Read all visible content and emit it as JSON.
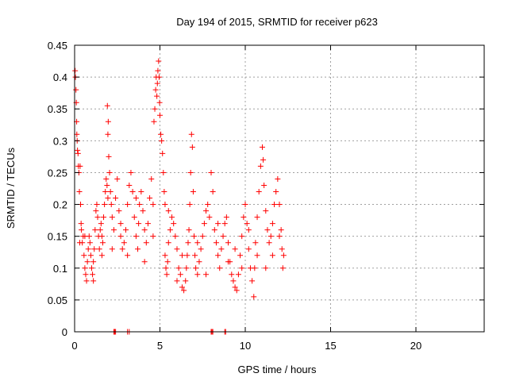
{
  "chart_data": {
    "type": "scatter",
    "title": "Day 194 of 2015, SRMTID for receiver p623",
    "xlabel": "GPS time / hours",
    "ylabel": "SRMTID / TECUs",
    "xlim": [
      0,
      24
    ],
    "ylim": [
      0,
      0.45
    ],
    "x_ticks": [
      0,
      5,
      10,
      15,
      20
    ],
    "x_tick_labels": [
      "0",
      "5",
      "10",
      "15",
      "20"
    ],
    "y_ticks": [
      0,
      0.05,
      0.1,
      0.15,
      0.2,
      0.25,
      0.3,
      0.35,
      0.4,
      0.45
    ],
    "y_tick_labels": [
      "0",
      "0.05",
      "0.1",
      "0.15",
      "0.2",
      "0.25",
      "0.3",
      "0.35",
      "0.4",
      "0.45"
    ],
    "grid": true,
    "marker": "+",
    "series": [
      {
        "name": "SRMTID",
        "color": "#ff0000",
        "points": [
          [
            0.03,
            0.41
          ],
          [
            0.05,
            0.4
          ],
          [
            0.08,
            0.38
          ],
          [
            0.1,
            0.36
          ],
          [
            0.12,
            0.33
          ],
          [
            0.13,
            0.31
          ],
          [
            0.15,
            0.3
          ],
          [
            0.17,
            0.285
          ],
          [
            0.2,
            0.28
          ],
          [
            0.22,
            0.26
          ],
          [
            0.25,
            0.25
          ],
          [
            0.28,
            0.22
          ],
          [
            0.32,
            0.26
          ],
          [
            0.35,
            0.2
          ],
          [
            0.38,
            0.17
          ],
          [
            0.4,
            0.16
          ],
          [
            0.45,
            0.14
          ],
          [
            0.5,
            0.15
          ],
          [
            0.55,
            0.12
          ],
          [
            0.6,
            0.1
          ],
          [
            0.65,
            0.09
          ],
          [
            0.7,
            0.08
          ],
          [
            0.75,
            0.11
          ],
          [
            0.8,
            0.13
          ],
          [
            0.85,
            0.15
          ],
          [
            0.9,
            0.14
          ],
          [
            0.95,
            0.12
          ],
          [
            1.0,
            0.1
          ],
          [
            1.05,
            0.09
          ],
          [
            1.1,
            0.11
          ],
          [
            1.15,
            0.13
          ],
          [
            1.2,
            0.16
          ],
          [
            1.25,
            0.19
          ],
          [
            1.3,
            0.2
          ],
          [
            1.35,
            0.18
          ],
          [
            1.4,
            0.15
          ],
          [
            1.45,
            0.13
          ],
          [
            1.5,
            0.16
          ],
          [
            1.55,
            0.17
          ],
          [
            1.6,
            0.15
          ],
          [
            1.65,
            0.14
          ],
          [
            1.7,
            0.18
          ],
          [
            1.75,
            0.2
          ],
          [
            1.8,
            0.22
          ],
          [
            1.85,
            0.24
          ],
          [
            1.9,
            0.23
          ],
          [
            1.95,
            0.21
          ],
          [
            1.92,
            0.355
          ],
          [
            1.95,
            0.31
          ],
          [
            1.97,
            0.33
          ],
          [
            2.0,
            0.275
          ],
          [
            2.05,
            0.25
          ],
          [
            2.1,
            0.22
          ],
          [
            2.15,
            0.2
          ],
          [
            2.2,
            0.18
          ],
          [
            2.3,
            0.16
          ],
          [
            2.4,
            0.21
          ],
          [
            2.5,
            0.24
          ],
          [
            2.6,
            0.19
          ],
          [
            2.7,
            0.15
          ],
          [
            2.8,
            0.13
          ],
          [
            2.9,
            0.14
          ],
          [
            3.0,
            0.16
          ],
          [
            3.1,
            0.2
          ],
          [
            3.2,
            0.23
          ],
          [
            3.3,
            0.25
          ],
          [
            3.4,
            0.22
          ],
          [
            3.5,
            0.18
          ],
          [
            3.6,
            0.15
          ],
          [
            3.7,
            0.13
          ],
          [
            3.75,
            0.17
          ],
          [
            3.8,
            0.2
          ],
          [
            3.9,
            0.22
          ],
          [
            4.0,
            0.19
          ],
          [
            4.1,
            0.16
          ],
          [
            4.2,
            0.14
          ],
          [
            4.3,
            0.17
          ],
          [
            4.4,
            0.21
          ],
          [
            4.5,
            0.24
          ],
          [
            4.6,
            0.2
          ],
          [
            4.65,
            0.33
          ],
          [
            4.7,
            0.35
          ],
          [
            4.75,
            0.38
          ],
          [
            4.78,
            0.4
          ],
          [
            4.82,
            0.37
          ],
          [
            4.85,
            0.39
          ],
          [
            4.88,
            0.41
          ],
          [
            4.92,
            0.425
          ],
          [
            4.95,
            0.4
          ],
          [
            4.98,
            0.36
          ],
          [
            5.0,
            0.34
          ],
          [
            5.05,
            0.31
          ],
          [
            5.1,
            0.3
          ],
          [
            5.15,
            0.28
          ],
          [
            5.2,
            0.25
          ],
          [
            5.25,
            0.22
          ],
          [
            5.3,
            0.2
          ],
          [
            5.3,
            0.12
          ],
          [
            5.35,
            0.1
          ],
          [
            5.4,
            0.09
          ],
          [
            5.45,
            0.11
          ],
          [
            5.5,
            0.14
          ],
          [
            5.6,
            0.16
          ],
          [
            5.7,
            0.18
          ],
          [
            5.8,
            0.17
          ],
          [
            5.9,
            0.15
          ],
          [
            6.0,
            0.13
          ],
          [
            6.1,
            0.1
          ],
          [
            6.2,
            0.09
          ],
          [
            6.3,
            0.07
          ],
          [
            6.4,
            0.065
          ],
          [
            6.5,
            0.08
          ],
          [
            6.55,
            0.1
          ],
          [
            6.6,
            0.12
          ],
          [
            6.65,
            0.14
          ],
          [
            6.7,
            0.16
          ],
          [
            6.75,
            0.2
          ],
          [
            6.8,
            0.25
          ],
          [
            6.85,
            0.31
          ],
          [
            6.9,
            0.29
          ],
          [
            6.95,
            0.22
          ],
          [
            7.0,
            0.15
          ],
          [
            7.05,
            0.12
          ],
          [
            7.1,
            0.1
          ],
          [
            7.2,
            0.09
          ],
          [
            7.3,
            0.11
          ],
          [
            7.4,
            0.13
          ],
          [
            7.5,
            0.15
          ],
          [
            7.6,
            0.17
          ],
          [
            7.7,
            0.19
          ],
          [
            7.8,
            0.2
          ],
          [
            7.9,
            0.18
          ],
          [
            8.0,
            0.25
          ],
          [
            8.1,
            0.22
          ],
          [
            8.2,
            0.16
          ],
          [
            8.3,
            0.14
          ],
          [
            8.4,
            0.12
          ],
          [
            8.5,
            0.1
          ],
          [
            8.6,
            0.13
          ],
          [
            8.7,
            0.15
          ],
          [
            8.8,
            0.17
          ],
          [
            8.9,
            0.18
          ],
          [
            9.0,
            0.14
          ],
          [
            9.1,
            0.11
          ],
          [
            9.2,
            0.09
          ],
          [
            9.3,
            0.08
          ],
          [
            9.4,
            0.07
          ],
          [
            9.5,
            0.065
          ],
          [
            9.6,
            0.09
          ],
          [
            9.7,
            0.12
          ],
          [
            9.8,
            0.15
          ],
          [
            9.9,
            0.18
          ],
          [
            10.0,
            0.2
          ],
          [
            10.1,
            0.17
          ],
          [
            10.2,
            0.13
          ],
          [
            10.3,
            0.1
          ],
          [
            10.4,
            0.08
          ],
          [
            10.5,
            0.055
          ],
          [
            10.55,
            0.1
          ],
          [
            10.6,
            0.14
          ],
          [
            10.7,
            0.18
          ],
          [
            10.8,
            0.22
          ],
          [
            10.9,
            0.26
          ],
          [
            11.0,
            0.29
          ],
          [
            11.05,
            0.27
          ],
          [
            11.1,
            0.23
          ],
          [
            11.2,
            0.19
          ],
          [
            11.3,
            0.16
          ],
          [
            11.4,
            0.14
          ],
          [
            11.5,
            0.15
          ],
          [
            11.6,
            0.17
          ],
          [
            11.7,
            0.2
          ],
          [
            11.8,
            0.22
          ],
          [
            11.9,
            0.24
          ],
          [
            12.0,
            0.2
          ],
          [
            12.1,
            0.16
          ],
          [
            12.15,
            0.13
          ],
          [
            12.2,
            0.1
          ],
          [
            12.25,
            0.12
          ],
          [
            0.3,
            0.14
          ],
          [
            0.6,
            0.15
          ],
          [
            1.1,
            0.08
          ],
          [
            1.6,
            0.12
          ],
          [
            2.2,
            0.13
          ],
          [
            2.7,
            0.17
          ],
          [
            3.1,
            0.12
          ],
          [
            3.6,
            0.21
          ],
          [
            4.1,
            0.11
          ],
          [
            4.6,
            0.15
          ],
          [
            5.5,
            0.19
          ],
          [
            6.0,
            0.08
          ],
          [
            6.3,
            0.12
          ],
          [
            7.2,
            0.14
          ],
          [
            7.7,
            0.09
          ],
          [
            8.4,
            0.17
          ],
          [
            9.0,
            0.11
          ],
          [
            9.4,
            0.13
          ],
          [
            9.8,
            0.1
          ],
          [
            10.2,
            0.16
          ],
          [
            10.7,
            0.12
          ],
          [
            11.2,
            0.1
          ],
          [
            11.6,
            0.12
          ],
          [
            12.0,
            0.15
          ],
          [
            2.3,
            0.0
          ],
          [
            2.35,
            0.0
          ],
          [
            2.4,
            0.0
          ],
          [
            3.1,
            0.0
          ],
          [
            3.2,
            0.0
          ],
          [
            8.0,
            0.0
          ],
          [
            8.05,
            0.0
          ],
          [
            8.1,
            0.0
          ],
          [
            8.8,
            0.0
          ],
          [
            8.85,
            0.0
          ]
        ]
      }
    ]
  }
}
